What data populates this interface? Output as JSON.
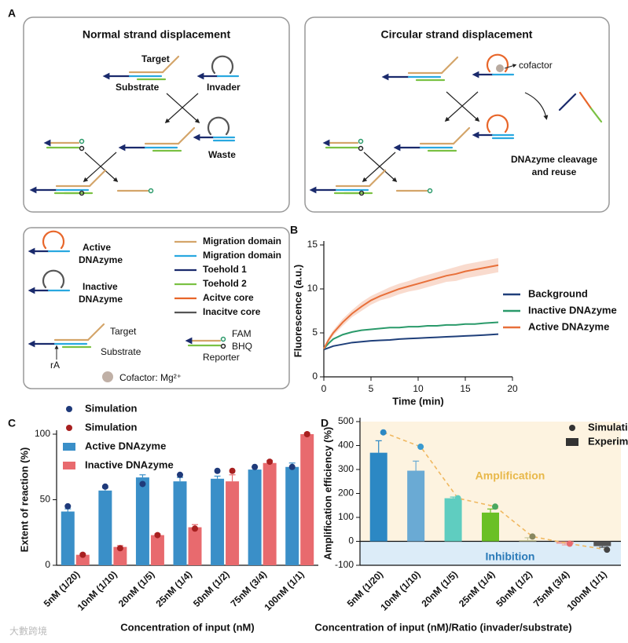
{
  "panel_labels": [
    "A",
    "B",
    "C",
    "D"
  ],
  "diagram": {
    "normal": {
      "title": "Normal strand displacement",
      "target": "Target",
      "substrate": "Substrate",
      "invader": "Invader",
      "waste": "Waste"
    },
    "circular": {
      "title": "Circular strand displacement",
      "cofactor": "cofactor",
      "reuse": [
        "DNAzyme cleavage",
        "and reuse"
      ]
    }
  },
  "legend": {
    "active": [
      "Active",
      "DNAzyme"
    ],
    "inactive": [
      "Inactive",
      "DNAzyme"
    ],
    "items": [
      {
        "name": "Migration domain",
        "color": "#d4a56a"
      },
      {
        "name": "Migration domain",
        "color": "#29a8e0"
      },
      {
        "name": "Toehold 1",
        "color": "#1a2a6c"
      },
      {
        "name": "Toehold 2",
        "color": "#7ac143"
      },
      {
        "name": "Acitve core",
        "color": "#e8662a"
      },
      {
        "name": "Inacitve core",
        "color": "#555555"
      }
    ],
    "target": "Target",
    "substrate": "Substrate",
    "ra": "rA",
    "fam": "FAM",
    "bhq": "BHQ",
    "reporter": "Reporter",
    "cofactor": "Cofactor: Mg²⁺"
  },
  "watermark": "大數跨境",
  "chart_data": [
    {
      "type": "line",
      "ylabel": "Fluorescence (a.u.)",
      "xlabel": "Time (min)",
      "xlim": [
        0,
        20
      ],
      "ylim": [
        0,
        15
      ],
      "xticks": [
        0,
        5,
        10,
        15,
        20
      ],
      "yticks": [
        0,
        5,
        10,
        15
      ],
      "x": [
        0,
        0.5,
        1,
        2,
        3,
        4,
        5,
        6,
        7,
        8,
        9,
        10,
        11,
        12,
        13,
        14,
        15,
        16,
        17,
        18.5
      ],
      "series": [
        {
          "name": "Background",
          "color": "#1f3f7a",
          "values": [
            3.1,
            3.3,
            3.5,
            3.7,
            3.9,
            4.0,
            4.1,
            4.15,
            4.2,
            4.3,
            4.35,
            4.4,
            4.45,
            4.5,
            4.55,
            4.6,
            4.65,
            4.7,
            4.75,
            4.85
          ]
        },
        {
          "name": "Inactive DNAzyme",
          "color": "#2a9a6a",
          "values": [
            3.2,
            3.8,
            4.3,
            4.8,
            5.1,
            5.3,
            5.4,
            5.5,
            5.6,
            5.6,
            5.7,
            5.7,
            5.8,
            5.8,
            5.9,
            5.9,
            6.0,
            6.0,
            6.1,
            6.2
          ]
        },
        {
          "name": "Active DNAzyme",
          "color": "#e8703a",
          "values": [
            3.2,
            4.2,
            5.0,
            6.2,
            7.2,
            8.0,
            8.7,
            9.2,
            9.6,
            10.0,
            10.3,
            10.6,
            10.9,
            11.2,
            11.5,
            11.7,
            12.0,
            12.2,
            12.4,
            12.7
          ],
          "errors": [
            0.2,
            0.3,
            0.3,
            0.4,
            0.4,
            0.5,
            0.5,
            0.5,
            0.6,
            0.6,
            0.6,
            0.7,
            0.7,
            0.7,
            0.7,
            0.8,
            0.8,
            0.8,
            0.8,
            0.8
          ]
        }
      ]
    },
    {
      "type": "bar",
      "ylabel": "Extent of reaction (%)",
      "xlabel": "Concentration of input (nM)",
      "ylim": [
        0,
        100
      ],
      "yticks": [
        0,
        50,
        100
      ],
      "categories": [
        "5nM (1/20)",
        "10nM (1/10)",
        "20nM (1/5)",
        "25nM (1/4)",
        "50nM (1/2)",
        "75nM (3/4)",
        "100nM (1/1)"
      ],
      "series": [
        {
          "name": "Simulation",
          "mark": "dot",
          "color": "#1f3a7a",
          "values": [
            45,
            60,
            62,
            69,
            72,
            75,
            75
          ]
        },
        {
          "name": "Simulation",
          "mark": "dot",
          "color": "#a82020",
          "values": [
            8,
            13,
            23,
            28,
            72,
            79,
            100
          ]
        },
        {
          "name": "Active DNAzyme",
          "mark": "bar",
          "color": "#3a8fc8",
          "values": [
            41,
            57,
            67,
            64,
            66,
            73,
            75
          ],
          "errors": [
            2,
            2,
            2,
            3,
            2,
            2,
            3
          ]
        },
        {
          "name": "Inactive DNAzyme",
          "mark": "bar",
          "color": "#e86a6e",
          "values": [
            8,
            14,
            23,
            29,
            64,
            78,
            100
          ],
          "errors": [
            1,
            1,
            1,
            2,
            5,
            2,
            1
          ]
        }
      ]
    },
    {
      "type": "bar",
      "ylabel": "Amplification efficiency (%)",
      "xlabel": "Concentration of input (nM)/Ratio (invader/substrate)",
      "ylim": [
        -100,
        500
      ],
      "yticks": [
        -100,
        0,
        100,
        200,
        300,
        400,
        500
      ],
      "regions": {
        "above": "Amplification",
        "below": "Inhibition"
      },
      "categories": [
        "5nM (1/20)",
        "10nM (1/10)",
        "20nM (1/5)",
        "25nM (1/4)",
        "50nM (1/2)",
        "75nM (3/4)",
        "100nM (1/1)"
      ],
      "series": [
        {
          "name": "Simulation",
          "mark": "dot",
          "color": "#333333",
          "colors": [
            "#2c88c4",
            "#3a9ad0",
            "#5fcdc0",
            "#4aa860",
            "#888860",
            "#e86a6e",
            "#444444"
          ],
          "line_color": "#f0b860",
          "line_style": "dashed",
          "values": [
            455,
            395,
            180,
            145,
            20,
            -10,
            -35
          ]
        },
        {
          "name": "Experiment",
          "mark": "bar",
          "color": "#333333",
          "colors": [
            "#2c88c4",
            "#6aaad4",
            "#5fcdc0",
            "#6ac025",
            "#c8c89a",
            "#f0a0a0",
            "#555555"
          ],
          "values": [
            370,
            295,
            180,
            120,
            5,
            -10,
            -20
          ],
          "errors": [
            50,
            40,
            5,
            15,
            10,
            5,
            5
          ]
        }
      ]
    }
  ]
}
